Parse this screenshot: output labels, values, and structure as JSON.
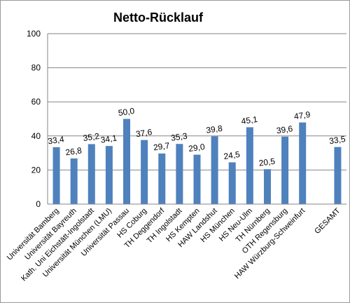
{
  "chart_data": {
    "type": "bar",
    "title": "Netto-Rücklauf",
    "xlabel": "",
    "ylabel": "",
    "ylim": [
      0,
      100
    ],
    "yticks": [
      "0",
      "20",
      "40",
      "60",
      "80",
      "100"
    ],
    "grid": true,
    "legend": "none",
    "bar_color": "#4f81bd",
    "categories": [
      "Universität Bamberg",
      "Universität Bayreuth",
      "Kath. Uni Eichstätt-Ingolstadt",
      "Universität München (LMU)",
      "Universität Passau",
      "HS Coburg",
      "TH Deggendorf",
      "TH Ingolstadt",
      "HS Kempten",
      "HAW Landshut",
      "HS München",
      "HS Neu-Ulm",
      "TH Nürnberg",
      "OTH Regensburg",
      "HAW Würzburg-Schweinfurt",
      "",
      "GESAMT"
    ],
    "values": [
      33.4,
      26.8,
      35.2,
      34.1,
      50.0,
      37.6,
      29.7,
      35.3,
      29.0,
      39.8,
      24.5,
      45.1,
      20.5,
      39.6,
      47.9,
      null,
      33.5
    ],
    "data_labels": [
      "33,4",
      "26,8",
      "35,2",
      "34,1",
      "50,0",
      "37,6",
      "29,7",
      "35,3",
      "29,0",
      "39,8",
      "24,5",
      "45,1",
      "20,5",
      "39,6",
      "47,9",
      "",
      "33,5"
    ]
  }
}
